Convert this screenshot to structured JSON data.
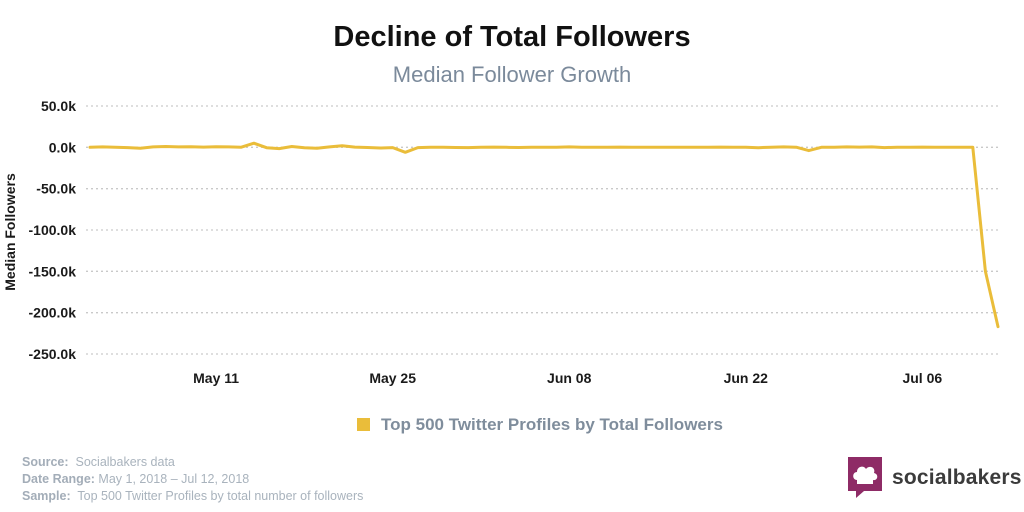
{
  "chart_data": {
    "type": "line",
    "title": "Decline of Total Followers",
    "subtitle": "Median Follower Growth",
    "ylabel": "Median Followers",
    "xlabel": "",
    "ylim": [
      -250,
      50
    ],
    "yticks": [
      50,
      0,
      -50,
      -100,
      -150,
      -200,
      -250
    ],
    "ytick_labels": [
      "50.0k",
      "0.0k",
      "-50.0k",
      "-100.0k",
      "-150.0k",
      "-200.0k",
      "-250.0k"
    ],
    "xticks": [
      {
        "day": 10,
        "label": "May 11"
      },
      {
        "day": 24,
        "label": "May 25"
      },
      {
        "day": 38,
        "label": "Jun 08"
      },
      {
        "day": 52,
        "label": "Jun 22"
      },
      {
        "day": 66,
        "label": "Jul 06"
      }
    ],
    "x_range": [
      0,
      72
    ],
    "grid": true,
    "legend_position": "bottom-center",
    "unit": "thousand followers",
    "series": [
      {
        "name": "Top 500 Twitter Profiles by Total Followers",
        "color": "#eabd3a",
        "x": [
          0,
          1,
          2,
          3,
          4,
          5,
          6,
          7,
          8,
          9,
          10,
          11,
          12,
          13,
          14,
          15,
          16,
          17,
          18,
          19,
          20,
          21,
          22,
          23,
          24,
          25,
          26,
          27,
          28,
          29,
          30,
          31,
          32,
          33,
          34,
          35,
          36,
          37,
          38,
          39,
          40,
          41,
          42,
          43,
          44,
          45,
          46,
          47,
          48,
          49,
          50,
          51,
          52,
          53,
          54,
          55,
          56,
          57,
          58,
          59,
          60,
          61,
          62,
          63,
          64,
          65,
          66,
          67,
          68,
          69,
          70,
          71,
          72
        ],
        "values": [
          0,
          0.5,
          0.2,
          -0.3,
          -1,
          0.5,
          1,
          0.5,
          0.8,
          0.3,
          0.8,
          0.5,
          0.2,
          5,
          -0.5,
          -1.5,
          1,
          -0.5,
          -1,
          0.5,
          2,
          0.3,
          -0.2,
          -0.8,
          -0.3,
          -6,
          -0.3,
          0,
          0,
          -0.2,
          -0.3,
          0.2,
          0.3,
          0,
          -0.2,
          0.2,
          0,
          0.2,
          0.5,
          0.2,
          0,
          0.2,
          0.3,
          0,
          0.2,
          0,
          0.2,
          0,
          0,
          0.2,
          0.3,
          0,
          0,
          -0.5,
          0.2,
          0.5,
          0.2,
          -4,
          0,
          0,
          0.5,
          0.3,
          0.5,
          -0.3,
          0.2,
          0,
          0.3,
          0.2,
          0,
          0,
          0,
          -150,
          -217
        ]
      }
    ]
  },
  "footer": {
    "source_key": "Source:",
    "source_val": "Socialbakers data",
    "range_key": "Date Range:",
    "range_val": "May 1, 2018  – Jul 12, 2018",
    "sample_key": "Sample:",
    "sample_val": "Top 500 Twitter Profiles by total number of followers"
  },
  "brand": {
    "name": "socialbakers",
    "icon": "chef-hat-icon",
    "color": "#8e2b66"
  }
}
